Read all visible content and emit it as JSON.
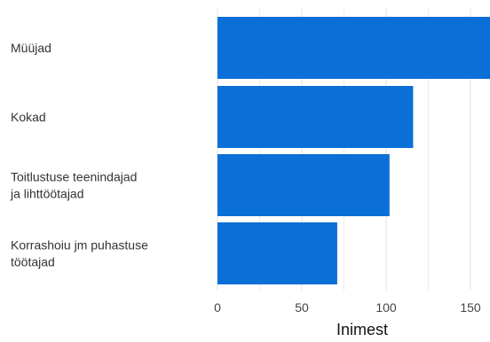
{
  "chart_data": {
    "type": "bar",
    "orientation": "horizontal",
    "categories": [
      [
        "Müüjad"
      ],
      [
        "Kokad"
      ],
      [
        "Toitlustuse teenindajad",
        "ja lihttöötajad"
      ],
      [
        "Korrashoiu jm puhastuse",
        "töötajad"
      ]
    ],
    "values": [
      163,
      116,
      102,
      71
    ],
    "xlabel": "Inimest",
    "xlim": [
      0,
      160
    ],
    "xticks": [
      0,
      50,
      100,
      150
    ],
    "grid": true,
    "bar_color": "#0a6fd6",
    "grid_color": "#e6e6e6"
  }
}
